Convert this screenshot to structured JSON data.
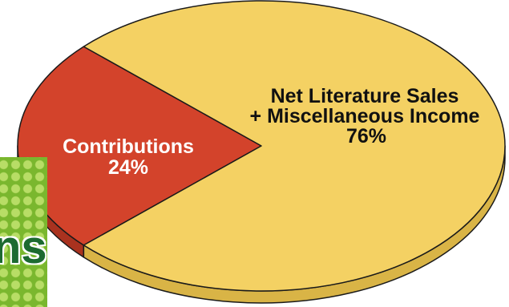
{
  "chart_data": {
    "type": "pie",
    "three_d": true,
    "slices": [
      {
        "label_lines": [
          "Contributions"
        ],
        "value": 24,
        "value_label": "24%",
        "color": "#d3432b",
        "side_color": "#a9321f",
        "label_color": "#ffffff"
      },
      {
        "label_lines": [
          "Net Literature Sales",
          "+ Miscellaneous Income"
        ],
        "value": 76,
        "value_label": "76%",
        "color": "#f4d163",
        "side_color": "#d9b446",
        "label_color": "#111111"
      }
    ],
    "outline_color": "#1a1a1a"
  },
  "logo": {
    "text": "ns",
    "background_color": "#7ab72e",
    "dot_color": "#b8dd66",
    "text_color": "#1c6a30"
  }
}
